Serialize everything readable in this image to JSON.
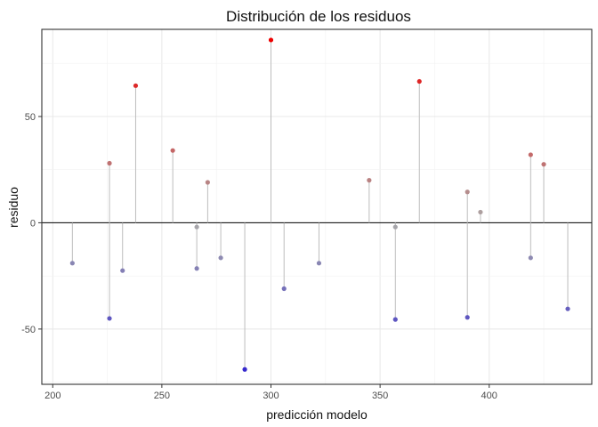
{
  "chart_data": {
    "type": "scatter",
    "title": "Distribución de los residuos",
    "xlabel": "predicción modelo",
    "ylabel": "residuo",
    "xlim": [
      195,
      447
    ],
    "ylim": [
      -76,
      91
    ],
    "x_ticks": [
      200,
      250,
      300,
      350,
      400
    ],
    "x_tick_labels": [
      "200",
      "250",
      "300",
      "350",
      "400"
    ],
    "y_ticks": [
      -50,
      0,
      50
    ],
    "y_tick_labels": [
      "-50",
      "0",
      "50"
    ],
    "grid": true,
    "reference_line": 0,
    "color_scale": {
      "low": "#1a0ad6",
      "mid": "#a9a9a9",
      "high": "#ee0000"
    },
    "points": [
      {
        "x": 209,
        "y": -19
      },
      {
        "x": 226,
        "y": 28
      },
      {
        "x": 226,
        "y": -45
      },
      {
        "x": 232,
        "y": -22.5
      },
      {
        "x": 238,
        "y": 64.5
      },
      {
        "x": 255,
        "y": 34
      },
      {
        "x": 266,
        "y": -2
      },
      {
        "x": 266,
        "y": -21.5
      },
      {
        "x": 271,
        "y": 19
      },
      {
        "x": 277,
        "y": -16.5
      },
      {
        "x": 288,
        "y": -69
      },
      {
        "x": 300,
        "y": 86
      },
      {
        "x": 306,
        "y": -31
      },
      {
        "x": 322,
        "y": -19
      },
      {
        "x": 345,
        "y": 20
      },
      {
        "x": 357,
        "y": -45.5
      },
      {
        "x": 357,
        "y": -2
      },
      {
        "x": 368,
        "y": 66.5
      },
      {
        "x": 390,
        "y": 14.5
      },
      {
        "x": 390,
        "y": -44.5
      },
      {
        "x": 396,
        "y": 5
      },
      {
        "x": 419,
        "y": 32
      },
      {
        "x": 419,
        "y": -16.5
      },
      {
        "x": 425,
        "y": 27.5
      },
      {
        "x": 436,
        "y": -40.5
      }
    ]
  }
}
